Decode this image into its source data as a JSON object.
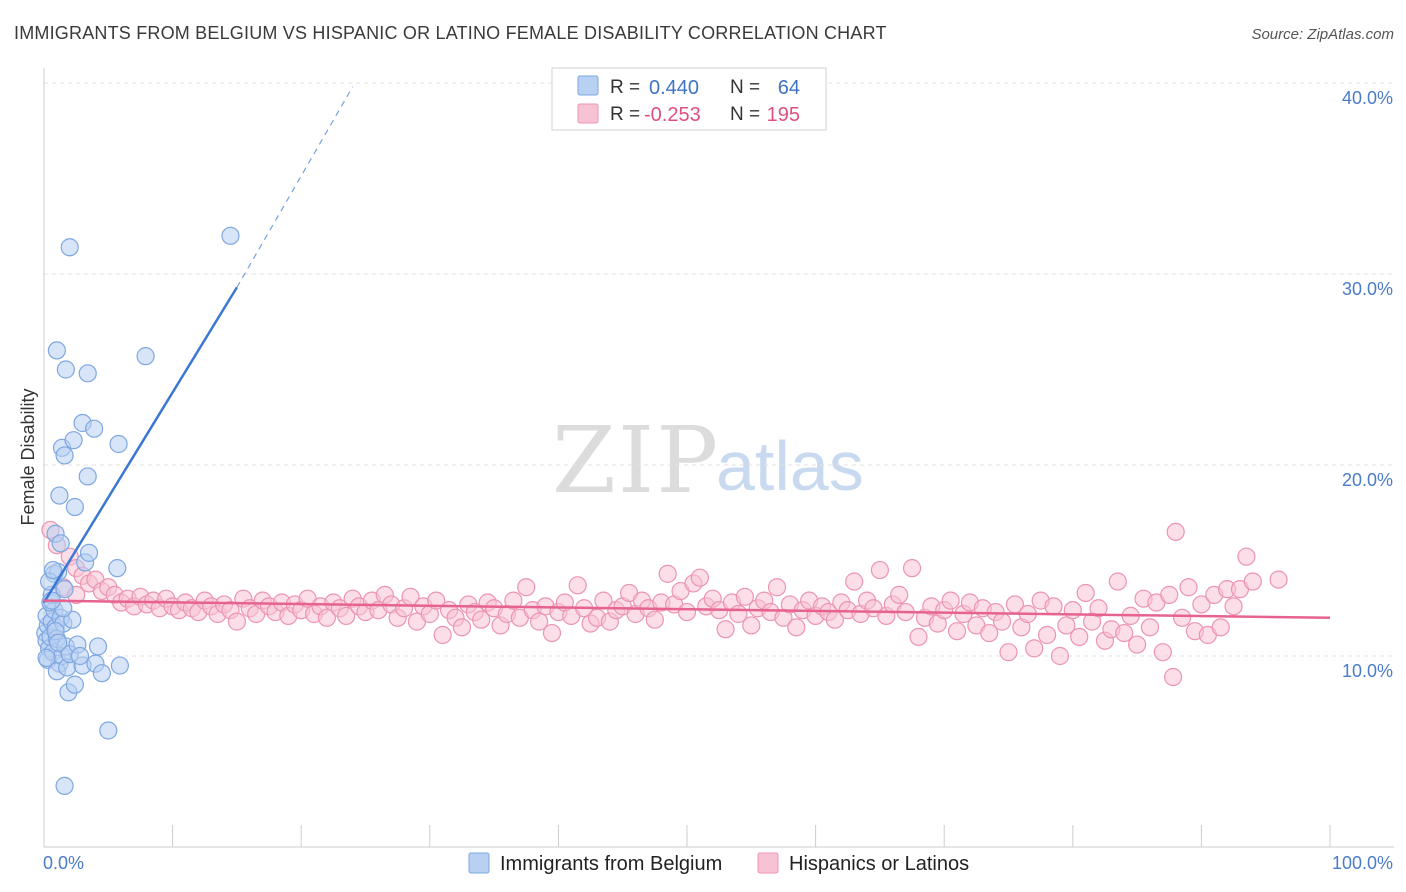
{
  "title": "IMMIGRANTS FROM BELGIUM VS HISPANIC OR LATINO FEMALE DISABILITY CORRELATION CHART",
  "source": "Source: ZipAtlas.com",
  "watermark": {
    "zip": "ZIP",
    "atlas": "atlas"
  },
  "colors": {
    "blue_fill": "#b8d0f2",
    "blue_stroke": "#7ea7e0",
    "blue_line": "#3a78d4",
    "pink_fill": "#f7c3d4",
    "pink_stroke": "#ec94b2",
    "pink_line": "#e6638f",
    "tick_text": "#4a7cc9",
    "grid": "#e2e2e2"
  },
  "legend_box": {
    "rows": [
      {
        "r_label": "R = ",
        "r_value": "0.440",
        "n_label": "N = ",
        "n_value": "64",
        "color": "blue"
      },
      {
        "r_label": "R = ",
        "r_value": "-0.253",
        "n_label": "N = ",
        "n_value": "195",
        "color": "pink"
      }
    ]
  },
  "bottom_legend": {
    "items": [
      {
        "label": "Immigrants from Belgium",
        "color": "blue"
      },
      {
        "label": "Hispanics or Latinos",
        "color": "pink"
      }
    ]
  },
  "chart_data": {
    "type": "scatter",
    "title": "IMMIGRANTS FROM BELGIUM VS HISPANIC OR LATINO FEMALE DISABILITY CORRELATION CHART",
    "xlabel": "",
    "ylabel": "Female Disability",
    "xlim": [
      0,
      100
    ],
    "ylim": [
      0,
      40
    ],
    "x_tick_labels": [
      "0.0%",
      "100.0%"
    ],
    "y_ticks": [
      10,
      20,
      30,
      40
    ],
    "y_tick_labels": [
      "10.0%",
      "20.0%",
      "30.0%",
      "40.0%"
    ],
    "grid": true,
    "series": [
      {
        "name": "Immigrants from Belgium",
        "color": "blue",
        "R": 0.44,
        "N": 64,
        "trend": {
          "x0": 0,
          "y0": 12.8,
          "x1": 15,
          "y1": 29.3,
          "dash_to_x": 24,
          "dash_to_y": 39.8
        },
        "points": [
          [
            0.1,
            11.2
          ],
          [
            0.2,
            10.8
          ],
          [
            0.3,
            11.6
          ],
          [
            0.2,
            12.1
          ],
          [
            0.4,
            10.4
          ],
          [
            0.5,
            11.0
          ],
          [
            0.6,
            11.8
          ],
          [
            0.3,
            9.8
          ],
          [
            0.7,
            10.2
          ],
          [
            0.8,
            12.4
          ],
          [
            0.9,
            11.5
          ],
          [
            1.0,
            10.9
          ],
          [
            0.5,
            12.8
          ],
          [
            0.6,
            13.2
          ],
          [
            0.8,
            14.3
          ],
          [
            1.1,
            14.4
          ],
          [
            0.9,
            16.4
          ],
          [
            1.2,
            9.6
          ],
          [
            1.4,
            10.0
          ],
          [
            1.0,
            9.2
          ],
          [
            1.3,
            12.0
          ],
          [
            1.5,
            11.7
          ],
          [
            1.6,
            13.5
          ],
          [
            1.7,
            10.5
          ],
          [
            1.8,
            9.4
          ],
          [
            2.0,
            10.1
          ],
          [
            2.2,
            11.9
          ],
          [
            1.9,
            8.1
          ],
          [
            2.4,
            8.5
          ],
          [
            2.6,
            10.6
          ],
          [
            3.0,
            9.5
          ],
          [
            3.2,
            14.9
          ],
          [
            3.5,
            15.4
          ],
          [
            1.3,
            15.9
          ],
          [
            1.2,
            18.4
          ],
          [
            1.4,
            20.9
          ],
          [
            1.6,
            20.5
          ],
          [
            2.3,
            21.3
          ],
          [
            2.4,
            17.8
          ],
          [
            3.0,
            22.2
          ],
          [
            3.4,
            19.4
          ],
          [
            3.9,
            21.9
          ],
          [
            4.0,
            9.6
          ],
          [
            4.2,
            10.5
          ],
          [
            4.5,
            9.1
          ],
          [
            5.0,
            6.1
          ],
          [
            1.6,
            3.2
          ],
          [
            1.0,
            26.0
          ],
          [
            1.7,
            25.0
          ],
          [
            3.4,
            24.8
          ],
          [
            2.0,
            31.4
          ],
          [
            5.7,
            14.6
          ],
          [
            5.9,
            9.5
          ],
          [
            5.8,
            21.1
          ],
          [
            7.9,
            25.7
          ],
          [
            14.5,
            32.0
          ],
          [
            0.4,
            13.9
          ],
          [
            0.7,
            14.5
          ],
          [
            1.5,
            12.5
          ],
          [
            0.2,
            9.9
          ],
          [
            0.9,
            11.3
          ],
          [
            1.1,
            10.7
          ],
          [
            2.8,
            10.0
          ],
          [
            0.6,
            12.9
          ]
        ]
      },
      {
        "name": "Hispanics or Latinos",
        "color": "pink",
        "R": -0.253,
        "N": 195,
        "trend": {
          "x0": 0,
          "y0": 12.9,
          "x1": 100,
          "y1": 12.0
        },
        "points": [
          [
            0.5,
            16.6
          ],
          [
            1.0,
            15.8
          ],
          [
            2.0,
            15.2
          ],
          [
            2.5,
            14.6
          ],
          [
            3.0,
            14.2
          ],
          [
            3.5,
            13.8
          ],
          [
            4.0,
            14.0
          ],
          [
            4.5,
            13.4
          ],
          [
            5.0,
            13.6
          ],
          [
            5.5,
            13.2
          ],
          [
            6.0,
            12.8
          ],
          [
            6.5,
            13.0
          ],
          [
            7.0,
            12.6
          ],
          [
            7.5,
            13.1
          ],
          [
            8.0,
            12.7
          ],
          [
            8.5,
            12.9
          ],
          [
            9.0,
            12.5
          ],
          [
            9.5,
            13.0
          ],
          [
            10.0,
            12.6
          ],
          [
            10.5,
            12.4
          ],
          [
            11.0,
            12.8
          ],
          [
            11.5,
            12.5
          ],
          [
            12.0,
            12.3
          ],
          [
            12.5,
            12.9
          ],
          [
            13.0,
            12.6
          ],
          [
            13.5,
            12.2
          ],
          [
            14.0,
            12.7
          ],
          [
            14.5,
            12.4
          ],
          [
            15.0,
            11.8
          ],
          [
            15.5,
            13.0
          ],
          [
            16.0,
            12.5
          ],
          [
            16.5,
            12.2
          ],
          [
            17.0,
            12.9
          ],
          [
            17.5,
            12.6
          ],
          [
            18.0,
            12.3
          ],
          [
            18.5,
            12.8
          ],
          [
            19.0,
            12.1
          ],
          [
            19.5,
            12.7
          ],
          [
            20.0,
            12.4
          ],
          [
            20.5,
            13.0
          ],
          [
            21.0,
            12.2
          ],
          [
            21.5,
            12.6
          ],
          [
            22.0,
            12.0
          ],
          [
            22.5,
            12.8
          ],
          [
            23.0,
            12.5
          ],
          [
            23.5,
            12.1
          ],
          [
            24.0,
            13.0
          ],
          [
            24.5,
            12.6
          ],
          [
            25.0,
            12.3
          ],
          [
            25.5,
            12.9
          ],
          [
            26.0,
            12.4
          ],
          [
            26.5,
            13.2
          ],
          [
            27.0,
            12.7
          ],
          [
            27.5,
            12.0
          ],
          [
            28.0,
            12.5
          ],
          [
            28.5,
            13.1
          ],
          [
            29.0,
            11.8
          ],
          [
            29.5,
            12.6
          ],
          [
            30.0,
            12.2
          ],
          [
            30.5,
            12.9
          ],
          [
            31.0,
            11.1
          ],
          [
            31.5,
            12.4
          ],
          [
            32.0,
            12.0
          ],
          [
            32.5,
            11.5
          ],
          [
            33.0,
            12.7
          ],
          [
            33.5,
            12.3
          ],
          [
            34.0,
            11.9
          ],
          [
            34.5,
            12.8
          ],
          [
            35.0,
            12.5
          ],
          [
            35.5,
            11.6
          ],
          [
            36.0,
            12.2
          ],
          [
            36.5,
            12.9
          ],
          [
            37.0,
            12.0
          ],
          [
            37.5,
            13.6
          ],
          [
            38.0,
            12.4
          ],
          [
            38.5,
            11.8
          ],
          [
            39.0,
            12.6
          ],
          [
            39.5,
            11.2
          ],
          [
            40.0,
            12.3
          ],
          [
            40.5,
            12.8
          ],
          [
            41.0,
            12.1
          ],
          [
            41.5,
            13.7
          ],
          [
            42.0,
            12.5
          ],
          [
            42.5,
            11.7
          ],
          [
            43.0,
            12.0
          ],
          [
            43.5,
            12.9
          ],
          [
            44.0,
            11.8
          ],
          [
            44.5,
            12.4
          ],
          [
            45.0,
            12.6
          ],
          [
            45.5,
            13.3
          ],
          [
            46.0,
            12.2
          ],
          [
            46.5,
            12.9
          ],
          [
            47.0,
            12.5
          ],
          [
            47.5,
            11.9
          ],
          [
            48.0,
            12.8
          ],
          [
            48.5,
            14.3
          ],
          [
            49.0,
            12.7
          ],
          [
            49.5,
            13.4
          ],
          [
            50.0,
            12.3
          ],
          [
            50.5,
            13.8
          ],
          [
            51.0,
            14.1
          ],
          [
            51.5,
            12.6
          ],
          [
            52.0,
            13.0
          ],
          [
            52.5,
            12.4
          ],
          [
            53.0,
            11.4
          ],
          [
            53.5,
            12.8
          ],
          [
            54.0,
            12.2
          ],
          [
            54.5,
            13.1
          ],
          [
            55.0,
            11.6
          ],
          [
            55.5,
            12.5
          ],
          [
            56.0,
            12.9
          ],
          [
            56.5,
            12.3
          ],
          [
            57.0,
            13.6
          ],
          [
            57.5,
            12.0
          ],
          [
            58.0,
            12.7
          ],
          [
            58.5,
            11.5
          ],
          [
            59.0,
            12.4
          ],
          [
            59.5,
            12.9
          ],
          [
            60.0,
            12.1
          ],
          [
            60.5,
            12.6
          ],
          [
            61.0,
            12.3
          ],
          [
            61.5,
            11.9
          ],
          [
            62.0,
            12.8
          ],
          [
            62.5,
            12.4
          ],
          [
            63.0,
            13.9
          ],
          [
            63.5,
            12.2
          ],
          [
            64.0,
            12.9
          ],
          [
            64.5,
            12.5
          ],
          [
            65.0,
            14.5
          ],
          [
            65.5,
            12.1
          ],
          [
            66.0,
            12.7
          ],
          [
            66.5,
            13.2
          ],
          [
            67.0,
            12.3
          ],
          [
            67.5,
            14.6
          ],
          [
            68.0,
            11.0
          ],
          [
            68.5,
            12.0
          ],
          [
            69.0,
            12.6
          ],
          [
            69.5,
            11.7
          ],
          [
            70.0,
            12.4
          ],
          [
            70.5,
            12.9
          ],
          [
            71.0,
            11.3
          ],
          [
            71.5,
            12.2
          ],
          [
            72.0,
            12.8
          ],
          [
            72.5,
            11.6
          ],
          [
            73.0,
            12.5
          ],
          [
            73.5,
            11.2
          ],
          [
            74.0,
            12.3
          ],
          [
            74.5,
            11.8
          ],
          [
            75.0,
            10.2
          ],
          [
            75.5,
            12.7
          ],
          [
            76.0,
            11.5
          ],
          [
            76.5,
            12.2
          ],
          [
            77.0,
            10.4
          ],
          [
            77.5,
            12.9
          ],
          [
            78.0,
            11.1
          ],
          [
            78.5,
            12.6
          ],
          [
            79.0,
            10.0
          ],
          [
            79.5,
            11.6
          ],
          [
            80.0,
            12.4
          ],
          [
            80.5,
            11.0
          ],
          [
            81.0,
            13.3
          ],
          [
            81.5,
            11.8
          ],
          [
            82.0,
            12.5
          ],
          [
            82.5,
            10.8
          ],
          [
            83.0,
            11.4
          ],
          [
            83.5,
            13.9
          ],
          [
            84.0,
            11.2
          ],
          [
            84.5,
            12.1
          ],
          [
            85.0,
            10.6
          ],
          [
            85.5,
            13.0
          ],
          [
            86.0,
            11.5
          ],
          [
            86.5,
            12.8
          ],
          [
            87.0,
            10.2
          ],
          [
            87.5,
            13.2
          ],
          [
            88.0,
            16.5
          ],
          [
            88.5,
            12.0
          ],
          [
            89.0,
            13.6
          ],
          [
            89.5,
            11.3
          ],
          [
            90.0,
            12.7
          ],
          [
            90.5,
            11.1
          ],
          [
            91.0,
            13.2
          ],
          [
            91.5,
            11.5
          ],
          [
            92.0,
            13.5
          ],
          [
            92.5,
            12.6
          ],
          [
            93.0,
            13.5
          ],
          [
            93.5,
            15.2
          ],
          [
            94.0,
            13.9
          ],
          [
            87.8,
            8.9
          ],
          [
            96.0,
            14.0
          ],
          [
            1.5,
            13.6
          ],
          [
            2.5,
            13.2
          ]
        ]
      }
    ]
  }
}
